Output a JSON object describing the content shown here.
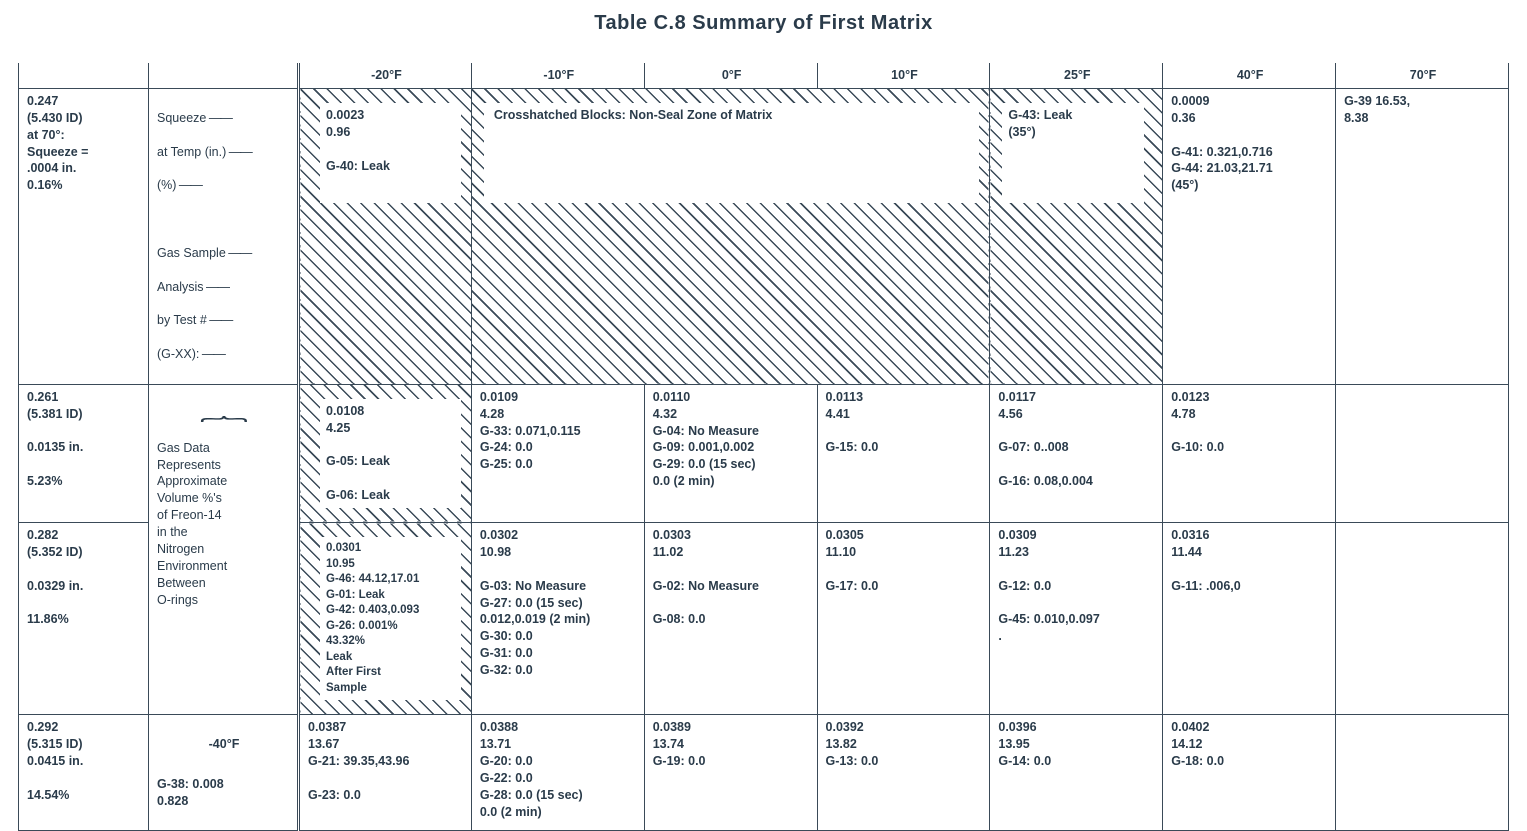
{
  "title": "Table C.8  Summary of First Matrix",
  "columns": [
    "-20°F",
    "-10°F",
    "0°F",
    "10°F",
    "25°F",
    "40°F",
    "70°F"
  ],
  "crosshatch_note": "Crosshatched Blocks:  Non-Seal Zone of Matrix",
  "legend": {
    "row1_lines": [
      "Squeeze",
      "at Temp (in.)",
      "(%)",
      "",
      "Gas Sample",
      "Analysis",
      "by Test #",
      "(G-XX):"
    ],
    "row2_brace_text": "Gas Data\nRepresents\nApproximate\nVolume %'s\nof Freon-14\nin the\nNitrogen\nEnvironment\nBetween\nO-rings",
    "row4_header": "-40°F",
    "row4_body": "G-38: 0.008\n          0.828"
  },
  "rowheads": [
    "0.247\n(5.430 ID)\nat 70°:\nSqueeze =\n  .0004 in.\n0.16%",
    "0.261\n(5.381 ID)\n\n0.0135 in.\n\n5.23%",
    "0.282\n(5.352 ID)\n\n0.0329 in.\n\n11.86%",
    "0.292\n(5.315 ID)\n0.0415 in.\n\n14.54%"
  ],
  "cells": {
    "r1": {
      "c1": "0.0023\n0.96\n\nG-40: Leak",
      "c5": "G-43: Leak\n          (35°)",
      "c6": "0.0009\n0.36\n\nG-41: 0.321,0.716\nG-44: 21.03,21.71\n          (45°)",
      "c7": "G-39  16.53,\n            8.38"
    },
    "r2": {
      "c1": "0.0108\n4.25\n\nG-05: Leak\n\nG-06: Leak",
      "c2": "0.0109\n4.28\nG-33: 0.071,0.115\nG-24: 0.0\nG-25: 0.0",
      "c3": "0.0110\n4.32\nG-04: No Measure\nG-09: 0.001,0.002\nG-29: 0.0 (15 sec)\n         0.0 (2 min)",
      "c4": "0.0113\n4.41\n\nG-15: 0.0",
      "c5": "0.0117\n4.56\n\nG-07: 0..008\n\nG-16: 0.08,0.004",
      "c6": "0.0123\n4.78\n\nG-10: 0.0",
      "c7": ""
    },
    "r3": {
      "c1": "0.0301\n10.95\nG-46: 44.12,17.01\nG-01: Leak\nG-42: 0.403,0.093\nG-26: 0.001%\n   43.32%\nLeak\nAfter First\nSample",
      "c2": "0.0302\n10.98\n\nG-03: No Measure\nG-27: 0.0 (15 sec)\n0.012,0.019 (2 min)\nG-30: 0.0\nG-31: 0.0\nG-32: 0.0",
      "c3": "0.0303\n11.02\n\nG-02: No Measure\n\nG-08: 0.0",
      "c4": "0.0305\n11.10\n\nG-17: 0.0",
      "c5": "0.0309\n11.23\n\nG-12: 0.0\n\nG-45: 0.010,0.097\n   .",
      "c6": "0.0316\n11.44\n\nG-11: .006,0",
      "c7": ""
    },
    "r4": {
      "c1": "0.0387\n13.67\nG-21: 39.35,43.96\n\nG-23: 0.0",
      "c2": "0.0388\n13.71\nG-20: 0.0\nG-22: 0.0\nG-28: 0.0 (15 sec)\n         0.0 (2 min)",
      "c3": "0.0389\n13.74\nG-19: 0.0",
      "c4": "0.0392\n13.82\nG-13: 0.0",
      "c5": "0.0396\n13.95\nG-14: 0.0",
      "c6": "0.0402\n14.12\nG-18: 0.0",
      "c7": ""
    }
  },
  "style": {
    "text_color": "#2a3b4a",
    "border_color": "#3a4a58",
    "background": "#ffffff",
    "title_fontsize": 20,
    "cell_fontsize": 12.5,
    "hatch_angle": 45,
    "hatch_spacing": 8
  }
}
